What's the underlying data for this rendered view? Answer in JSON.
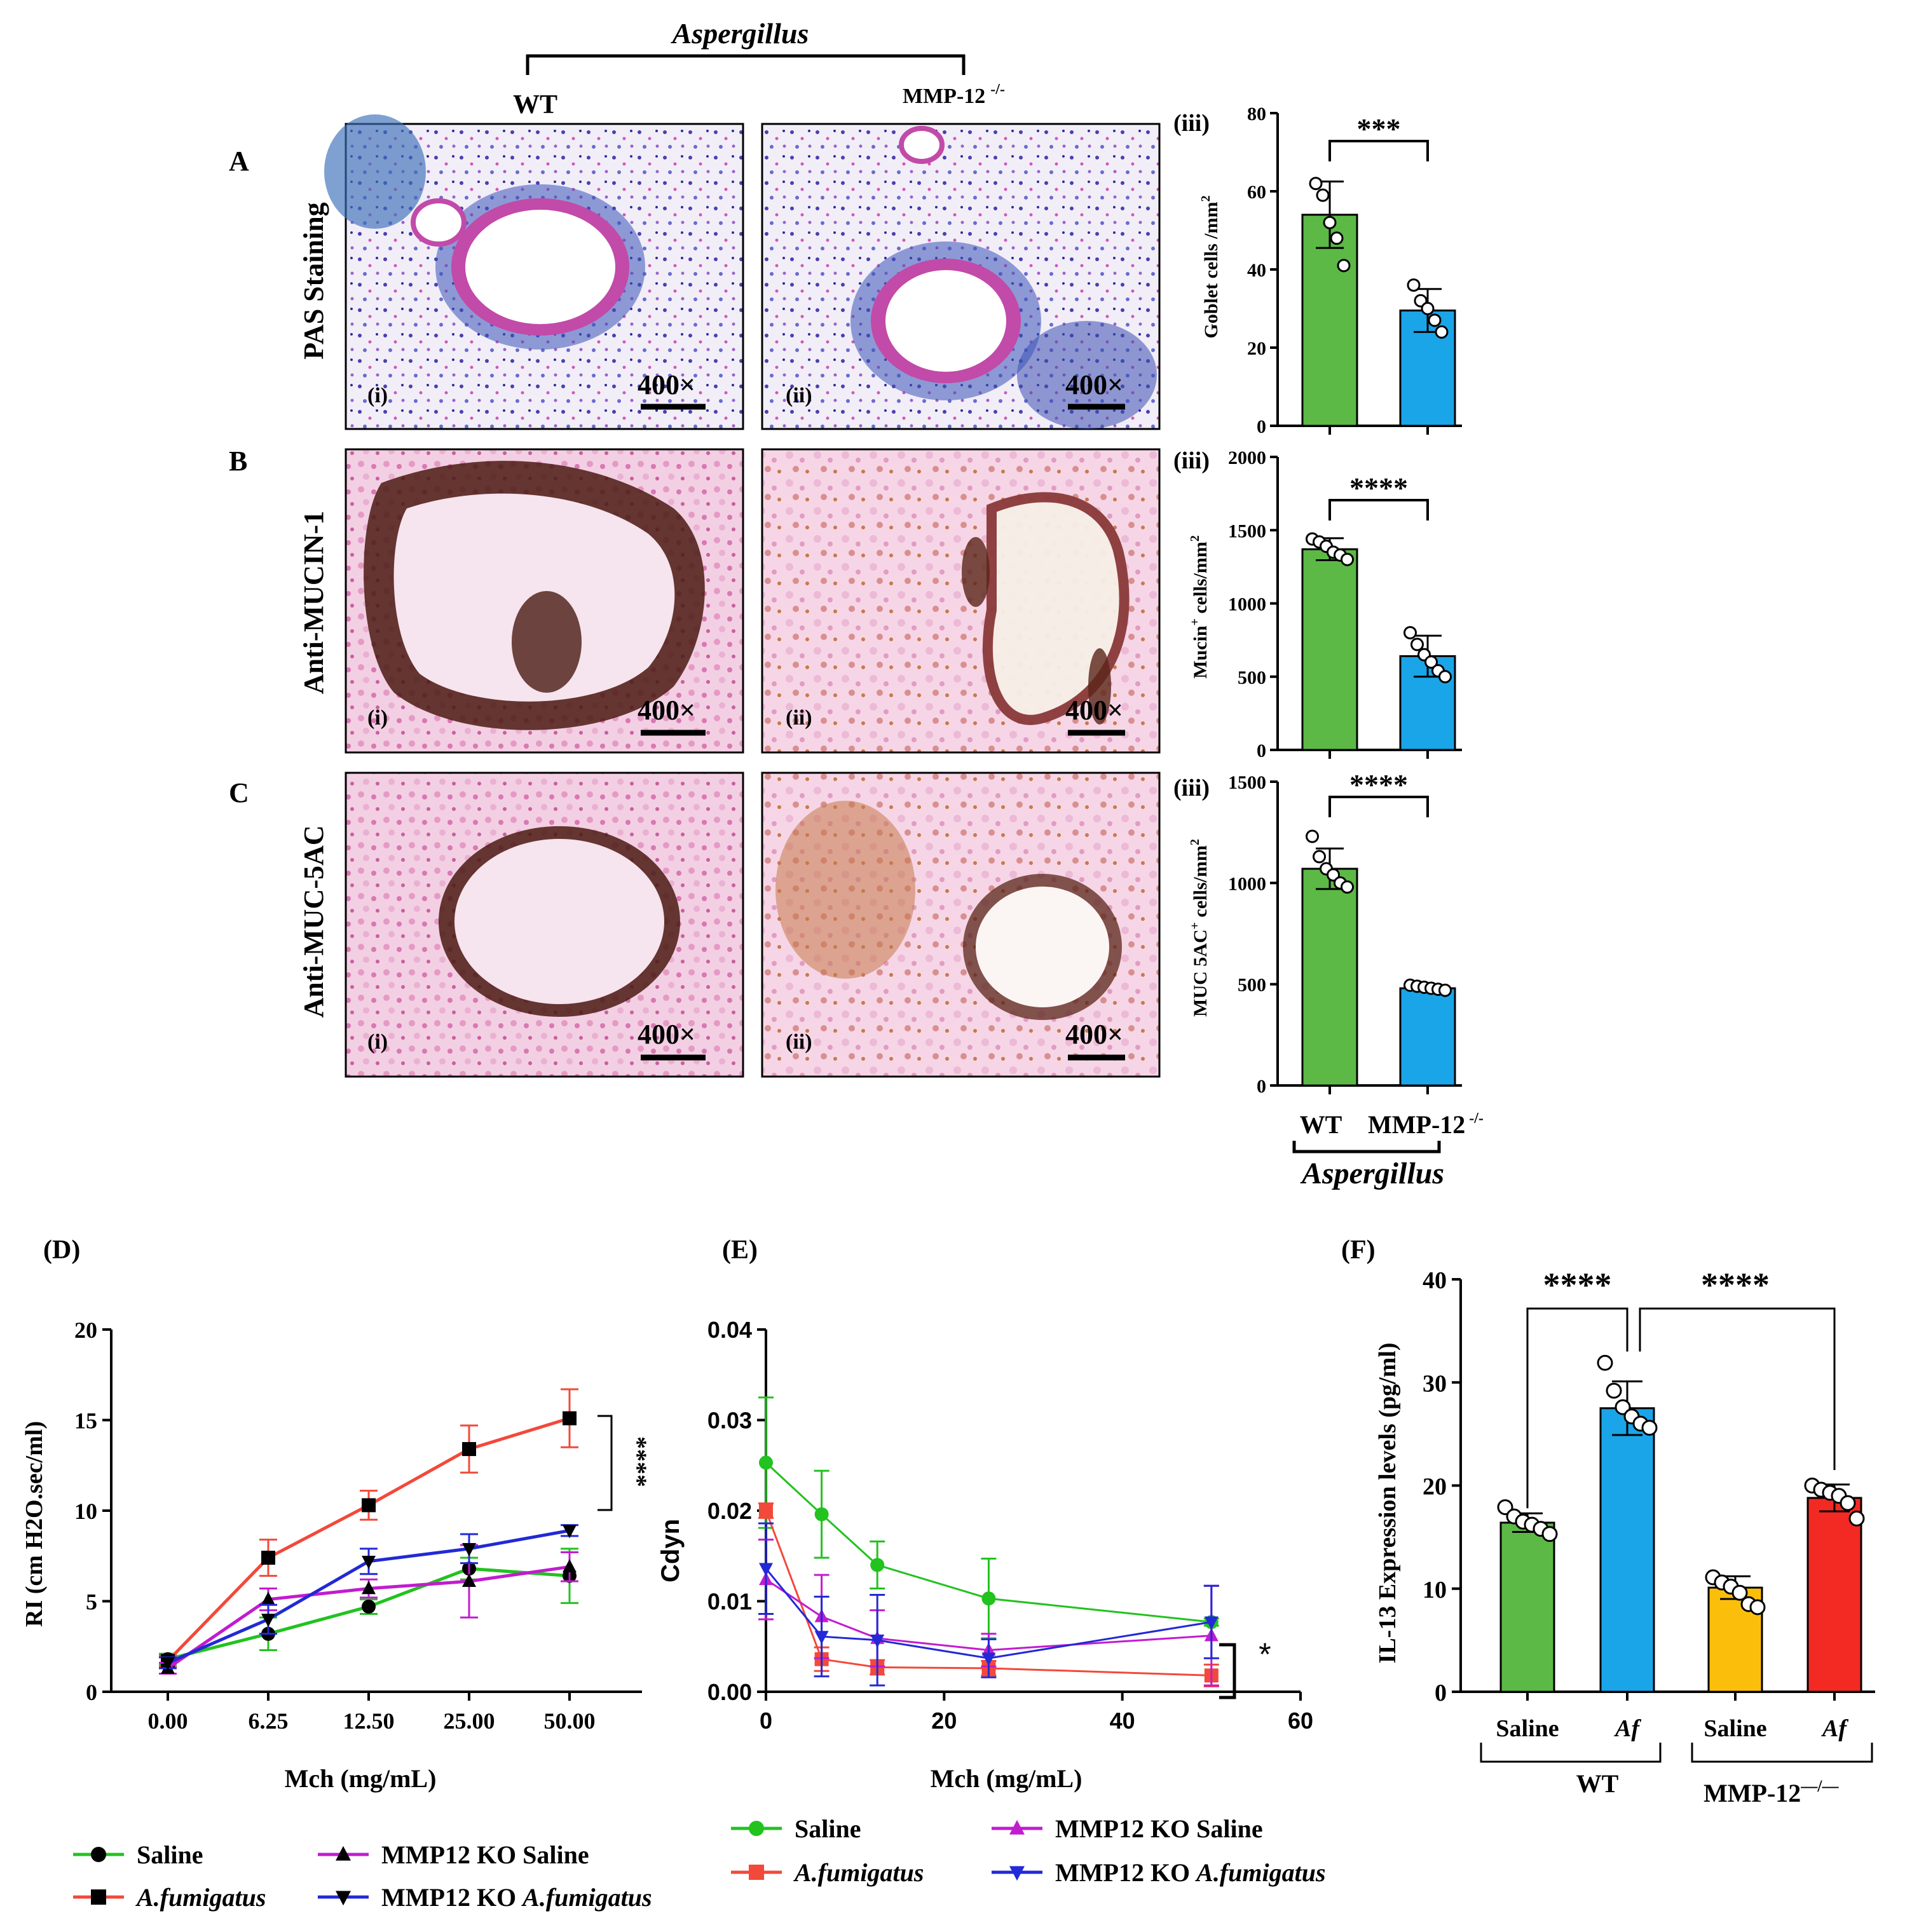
{
  "header": {
    "group_label": "Aspergillus",
    "wt_label": "WT",
    "ko_label": "MMP-12",
    "ko_sup": "-/-"
  },
  "panel_letters": [
    "A",
    "B",
    "C"
  ],
  "row_titles": [
    "PAS Staining",
    "Anti-MUCIN-1",
    "Anti-MUC-5AC"
  ],
  "micro_labels": {
    "left": "(i)",
    "right": "(ii)",
    "magnification": "400×"
  },
  "colors": {
    "green": "#5cb946",
    "blue": "#1aa5e9",
    "yellow": "#fbbf0b",
    "red": "#f32a24",
    "line_green": "#22c21f",
    "line_red": "#f2493a",
    "line_blue": "#2229d6",
    "line_magenta": "#c21bd0"
  },
  "bottom_axis": {
    "wt": "WT",
    "ko": "MMP-12",
    "ko_sup": "-/-",
    "group": "Aspergillus"
  },
  "chart_data": [
    {
      "id": "A_iii",
      "type": "bar",
      "panel_label": "(iii)",
      "title": "",
      "ylabel": "Goblet cells /mm",
      "ylabel_sup": "2",
      "categories": [
        "WT",
        "MMP-12 -/-"
      ],
      "values": [
        54,
        29.5
      ],
      "errors": [
        8.5,
        5.5
      ],
      "ylim": [
        0,
        80
      ],
      "yticks": [
        0,
        20,
        40,
        60,
        80
      ],
      "points": [
        [
          62,
          59,
          52,
          48,
          41
        ],
        [
          36,
          32,
          30,
          27,
          24
        ]
      ],
      "significance": "***"
    },
    {
      "id": "B_iii",
      "type": "bar",
      "panel_label": "(iii)",
      "title": "",
      "ylabel": "Mucin",
      "ylabel_sup": "+",
      "ylabel_tail": " cells/mm",
      "ylabel_tail_sup": "2",
      "categories": [
        "WT",
        "MMP-12 -/-"
      ],
      "values": [
        1370,
        640
      ],
      "errors": [
        75,
        140
      ],
      "ylim": [
        0,
        2000
      ],
      "yticks": [
        0,
        500,
        1000,
        1500,
        2000
      ],
      "points": [
        [
          1440,
          1420,
          1390,
          1350,
          1330,
          1300
        ],
        [
          800,
          720,
          650,
          600,
          540,
          500
        ]
      ],
      "significance": "****"
    },
    {
      "id": "C_iii",
      "type": "bar",
      "panel_label": "(iii)",
      "title": "",
      "ylabel": "MUC 5AC",
      "ylabel_sup": "+",
      "ylabel_tail": " cells/mm",
      "ylabel_tail_sup": "2",
      "categories": [
        "WT",
        "MMP-12 -/-"
      ],
      "values": [
        1070,
        480
      ],
      "errors": [
        100,
        15
      ],
      "ylim": [
        0,
        1500
      ],
      "yticks": [
        0,
        500,
        1000,
        1500
      ],
      "points": [
        [
          1230,
          1130,
          1070,
          1040,
          1000,
          980
        ],
        [
          495,
          490,
          485,
          480,
          475,
          470
        ]
      ],
      "significance": "****"
    },
    {
      "id": "D",
      "type": "line",
      "panel_label": "(D)",
      "ylabel": "RI (cm H2O.sec/ml)",
      "xlabel": "Mch (mg/mL)",
      "categories": [
        "0.00",
        "6.25",
        "12.50",
        "25.00",
        "50.00"
      ],
      "ylim": [
        0,
        20
      ],
      "yticks": [
        0,
        5,
        10,
        15,
        20
      ],
      "significance": "****",
      "series": [
        {
          "name": "Saline",
          "color": "#22c21f",
          "marker": "circle",
          "values": [
            1.8,
            3.2,
            4.7,
            6.8,
            6.4
          ],
          "errors": [
            0.3,
            0.9,
            0.4,
            0.6,
            1.5
          ]
        },
        {
          "name": "A.fumigatus",
          "italic": true,
          "color": "#f2493a",
          "marker": "square",
          "values": [
            1.7,
            7.4,
            10.3,
            13.4,
            15.1
          ],
          "errors": [
            0.3,
            1.0,
            0.8,
            1.3,
            1.6
          ]
        },
        {
          "name": "MMP12 KO Saline",
          "color": "#c21bd0",
          "marker": "triangle",
          "values": [
            1.3,
            5.1,
            5.7,
            6.1,
            6.9
          ],
          "errors": [
            0.3,
            0.6,
            0.5,
            2.0,
            0.8
          ]
        },
        {
          "name": "MMP12 KO A.fumigatus",
          "name_plain": "MMP12 KO ",
          "name_italic": "A.fumigatus",
          "color": "#2229d6",
          "marker": "triangle-down",
          "values": [
            1.6,
            4.0,
            7.2,
            7.9,
            8.9
          ],
          "errors": [
            0.3,
            0.8,
            0.7,
            0.8,
            0.3
          ]
        }
      ]
    },
    {
      "id": "E",
      "type": "line",
      "panel_label": "(E)",
      "ylabel": "Cdyn",
      "xlabel": "Mch (mg/mL)",
      "xlim": [
        0,
        60
      ],
      "xticks": [
        0,
        20,
        40,
        60
      ],
      "ylim": [
        0,
        0.04
      ],
      "yticks": [
        "0.00",
        "0.01",
        "0.02",
        "0.03",
        "0.04"
      ],
      "significance": "*",
      "x": [
        0,
        6.25,
        12.5,
        25,
        50
      ],
      "series": [
        {
          "name": "Saline",
          "color": "#22c21f",
          "marker": "circle",
          "values": [
            0.0253,
            0.0196,
            0.014,
            0.0103,
            0.0077
          ],
          "errors": [
            0.0072,
            0.0048,
            0.0026,
            0.0044,
            0.0004
          ]
        },
        {
          "name": "A.fumigatus",
          "italic": true,
          "color": "#f2493a",
          "marker": "square",
          "values": [
            0.02,
            0.0036,
            0.0027,
            0.0026,
            0.0018
          ],
          "errors": [
            0.0008,
            0.0013,
            0.0008,
            0.0008,
            0.0012
          ]
        },
        {
          "name": "MMP12 KO Saline",
          "color": "#c21bd0",
          "marker": "triangle",
          "values": [
            0.0124,
            0.0083,
            0.0059,
            0.0046,
            0.0062
          ],
          "errors": [
            0.0044,
            0.0046,
            0.0031,
            0.0018,
            0.0055
          ]
        },
        {
          "name": "MMP12 KO A.fumigatus",
          "name_plain": "MMP12 KO ",
          "name_italic": "A.fumigatus",
          "color": "#2229d6",
          "marker": "triangle-down",
          "values": [
            0.0136,
            0.0061,
            0.0057,
            0.0037,
            0.0077
          ],
          "errors": [
            0.005,
            0.0044,
            0.005,
            0.0021,
            0.004
          ]
        }
      ]
    },
    {
      "id": "F",
      "type": "bar",
      "panel_label": "(F)",
      "ylabel": "IL-13 Expression levels (pg/ml)",
      "categories": [
        "Saline",
        "Af",
        "Saline",
        "Af"
      ],
      "groups": [
        "WT",
        "MMP-12"
      ],
      "group_sup": "—/—",
      "values": [
        16.4,
        27.5,
        10.1,
        18.8
      ],
      "errors": [
        0.9,
        2.6,
        1.1,
        1.3
      ],
      "ylim": [
        0,
        40
      ],
      "yticks": [
        0,
        10,
        20,
        30,
        40
      ],
      "points": [
        [
          17.9,
          17.0,
          16.5,
          16.2,
          15.8,
          15.3
        ],
        [
          31.9,
          29.2,
          27.6,
          26.7,
          26.0,
          25.6
        ],
        [
          11.1,
          10.6,
          10.2,
          9.6,
          8.5,
          8.2
        ],
        [
          20.0,
          19.6,
          19.3,
          19.0,
          18.3,
          16.8
        ]
      ],
      "significance": [
        "****",
        "****"
      ]
    }
  ]
}
